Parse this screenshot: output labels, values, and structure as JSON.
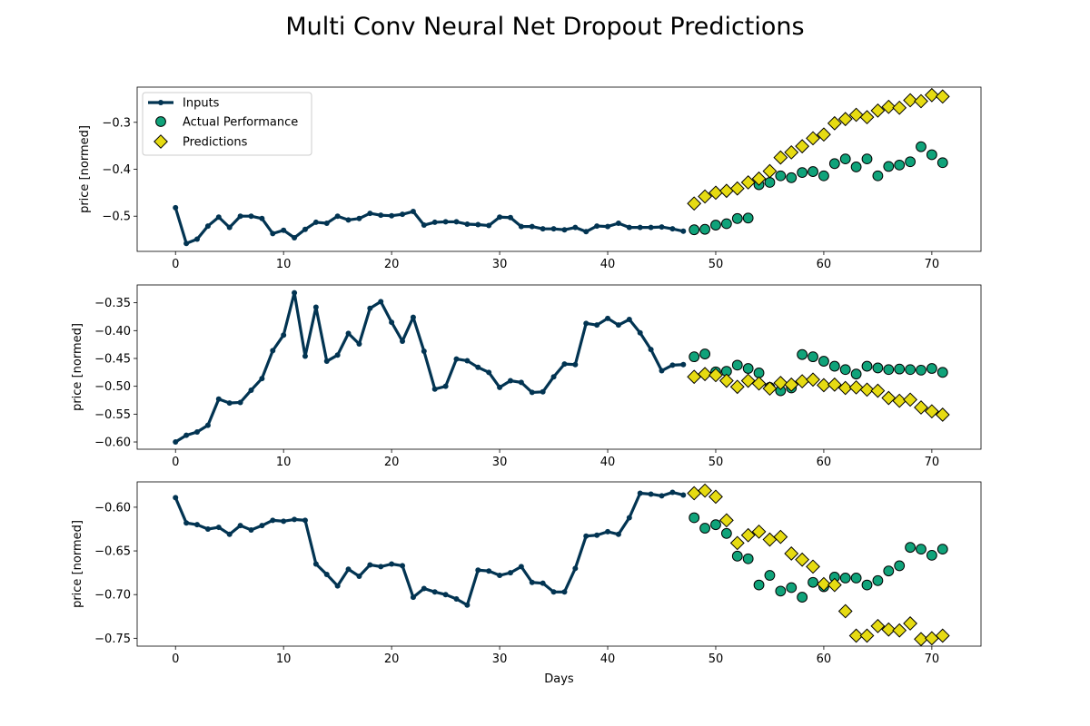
{
  "title": "Multi Conv Neural Net Dropout Predictions",
  "colors": {
    "inputs": "#023452",
    "actual": "#10a37a",
    "predictions": "#e6db12",
    "edge": "#000000"
  },
  "legend": {
    "placement": "upper-left",
    "entries": [
      {
        "key": "inputs",
        "label": "Inputs"
      },
      {
        "key": "actual",
        "label": "Actual Performance"
      },
      {
        "key": "predictions",
        "label": "Predictions"
      }
    ]
  },
  "chart_data": [
    {
      "type": "line",
      "ylabel": "price [normed]",
      "xlabel": "",
      "xlim": [
        -3.55,
        74.55
      ],
      "ylim": [
        -0.575,
        -0.225
      ],
      "xticks": [
        0,
        10,
        20,
        30,
        40,
        50,
        60,
        70
      ],
      "yticks": [
        -0.5,
        -0.4,
        -0.3
      ],
      "ytick_labels": [
        "−0.5",
        "−0.4",
        "−0.3"
      ],
      "inputs": {
        "x_start": 0,
        "values": [
          -0.482,
          -0.558,
          -0.549,
          -0.521,
          -0.502,
          -0.524,
          -0.5,
          -0.5,
          -0.505,
          -0.537,
          -0.53,
          -0.546,
          -0.528,
          -0.513,
          -0.515,
          -0.5,
          -0.508,
          -0.505,
          -0.494,
          -0.498,
          -0.499,
          -0.496,
          -0.49,
          -0.519,
          -0.513,
          -0.512,
          -0.512,
          -0.517,
          -0.518,
          -0.52,
          -0.502,
          -0.503,
          -0.522,
          -0.522,
          -0.527,
          -0.527,
          -0.529,
          -0.524,
          -0.533,
          -0.521,
          -0.522,
          -0.515,
          -0.524,
          -0.524,
          -0.524,
          -0.523,
          -0.527,
          -0.532
        ]
      },
      "actual": {
        "x_start": 48,
        "values": [
          -0.529,
          -0.528,
          -0.519,
          -0.516,
          -0.505,
          -0.504,
          -0.433,
          -0.428,
          -0.414,
          -0.418,
          -0.407,
          -0.405,
          -0.414,
          -0.388,
          -0.378,
          -0.395,
          -0.378,
          -0.414,
          -0.394,
          -0.391,
          -0.384,
          -0.352,
          -0.369,
          -0.386
        ]
      },
      "predictions": {
        "x_start": 48,
        "values": [
          -0.473,
          -0.458,
          -0.45,
          -0.446,
          -0.441,
          -0.428,
          -0.42,
          -0.404,
          -0.375,
          -0.364,
          -0.351,
          -0.334,
          -0.326,
          -0.302,
          -0.293,
          -0.284,
          -0.289,
          -0.275,
          -0.267,
          -0.269,
          -0.253,
          -0.255,
          -0.242,
          -0.245
        ]
      }
    },
    {
      "type": "line",
      "ylabel": "price [normed]",
      "xlabel": "",
      "xlim": [
        -3.55,
        74.55
      ],
      "ylim": [
        -0.613,
        -0.318
      ],
      "xticks": [
        0,
        10,
        20,
        30,
        40,
        50,
        60,
        70
      ],
      "yticks": [
        -0.6,
        -0.55,
        -0.5,
        -0.45,
        -0.4,
        -0.35
      ],
      "ytick_labels": [
        "−0.60",
        "−0.55",
        "−0.50",
        "−0.45",
        "−0.40",
        "−0.35"
      ],
      "inputs": {
        "x_start": 0,
        "values": [
          -0.6,
          -0.588,
          -0.582,
          -0.57,
          -0.523,
          -0.53,
          -0.529,
          -0.507,
          -0.486,
          -0.436,
          -0.408,
          -0.332,
          -0.446,
          -0.358,
          -0.455,
          -0.444,
          -0.405,
          -0.424,
          -0.36,
          -0.348,
          -0.385,
          -0.419,
          -0.376,
          -0.437,
          -0.505,
          -0.5,
          -0.451,
          -0.454,
          -0.466,
          -0.475,
          -0.502,
          -0.49,
          -0.493,
          -0.511,
          -0.51,
          -0.483,
          -0.46,
          -0.461,
          -0.387,
          -0.39,
          -0.378,
          -0.39,
          -0.38,
          -0.404,
          -0.434,
          -0.472,
          -0.462,
          -0.461
        ]
      },
      "actual": {
        "x_start": 48,
        "values": [
          -0.447,
          -0.442,
          -0.474,
          -0.473,
          -0.462,
          -0.468,
          -0.476,
          -0.502,
          -0.508,
          -0.503,
          -0.443,
          -0.447,
          -0.455,
          -0.464,
          -0.47,
          -0.478,
          -0.464,
          -0.467,
          -0.47,
          -0.469,
          -0.47,
          -0.471,
          -0.468,
          -0.475
        ]
      },
      "predictions": {
        "x_start": 48,
        "values": [
          -0.483,
          -0.478,
          -0.48,
          -0.49,
          -0.501,
          -0.49,
          -0.495,
          -0.504,
          -0.494,
          -0.497,
          -0.491,
          -0.488,
          -0.498,
          -0.497,
          -0.503,
          -0.502,
          -0.506,
          -0.508,
          -0.521,
          -0.526,
          -0.524,
          -0.538,
          -0.545,
          -0.551
        ]
      }
    },
    {
      "type": "line",
      "ylabel": "price [normed]",
      "xlabel": "Days",
      "xlim": [
        -3.55,
        74.55
      ],
      "ylim": [
        -0.759,
        -0.571
      ],
      "xticks": [
        0,
        10,
        20,
        30,
        40,
        50,
        60,
        70
      ],
      "yticks": [
        -0.75,
        -0.7,
        -0.65,
        -0.6
      ],
      "ytick_labels": [
        "−0.75",
        "−0.70",
        "−0.65",
        "−0.60"
      ],
      "inputs": {
        "x_start": 0,
        "values": [
          -0.589,
          -0.618,
          -0.62,
          -0.625,
          -0.623,
          -0.631,
          -0.621,
          -0.626,
          -0.621,
          -0.615,
          -0.616,
          -0.614,
          -0.615,
          -0.665,
          -0.677,
          -0.69,
          -0.671,
          -0.679,
          -0.666,
          -0.668,
          -0.665,
          -0.667,
          -0.703,
          -0.693,
          -0.697,
          -0.7,
          -0.705,
          -0.712,
          -0.672,
          -0.673,
          -0.678,
          -0.675,
          -0.668,
          -0.686,
          -0.687,
          -0.697,
          -0.697,
          -0.67,
          -0.633,
          -0.632,
          -0.628,
          -0.631,
          -0.612,
          -0.584,
          -0.585,
          -0.587,
          -0.583,
          -0.586
        ]
      },
      "actual": {
        "x_start": 48,
        "values": [
          -0.612,
          -0.624,
          -0.62,
          -0.63,
          -0.656,
          -0.659,
          -0.689,
          -0.678,
          -0.696,
          -0.692,
          -0.703,
          -0.686,
          -0.691,
          -0.68,
          -0.681,
          -0.681,
          -0.689,
          -0.684,
          -0.673,
          -0.667,
          -0.646,
          -0.648,
          -0.655,
          -0.648
        ]
      },
      "predictions": {
        "x_start": 48,
        "values": [
          -0.584,
          -0.581,
          -0.588,
          -0.615,
          -0.641,
          -0.632,
          -0.628,
          -0.637,
          -0.634,
          -0.653,
          -0.66,
          -0.668,
          -0.688,
          -0.689,
          -0.719,
          -0.747,
          -0.747,
          -0.736,
          -0.74,
          -0.741,
          -0.733,
          -0.751,
          -0.75,
          -0.747
        ]
      }
    }
  ]
}
